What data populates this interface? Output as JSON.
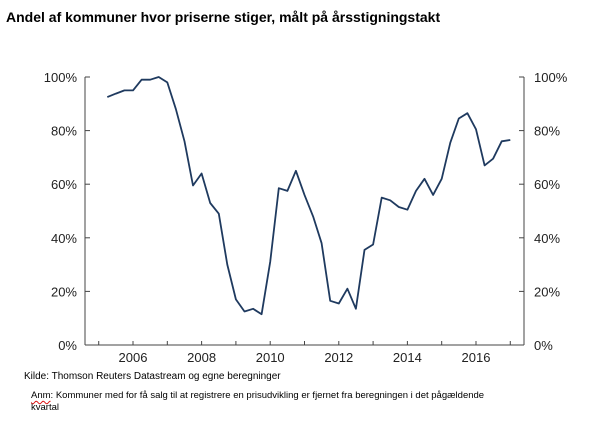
{
  "title": "Andel af kommuner hvor priserne stiger, målt på årsstigningstakt",
  "source": "Kilde: Thomson Reuters Datastream og egne beregninger",
  "note": {
    "prefix": "Anm",
    "text": ": Kommuner med for få salg til at registrere en prisudvikling er fjernet fra beregningen i det pågældende kvartal"
  },
  "chart_data": {
    "type": "line",
    "title": "Andel af kommuner hvor priserne stiger, målt på årsstigningstakt",
    "xlabel": "",
    "ylabel": "",
    "xlim": [
      2004.6,
      2017.4
    ],
    "ylim": [
      0,
      100
    ],
    "x_ticks": [
      2006,
      2008,
      2010,
      2012,
      2014,
      2016
    ],
    "x_tick_labels": [
      "2006",
      "2008",
      "2010",
      "2012",
      "2014",
      "2016"
    ],
    "y_ticks": [
      0,
      20,
      40,
      60,
      80,
      100
    ],
    "y_tick_labels": [
      "0%",
      "20%",
      "40%",
      "60%",
      "80%",
      "100%"
    ],
    "right_axis": true,
    "grid": false,
    "line_color": "#1f3a5f",
    "series": [
      {
        "x": [
          2005.25,
          2005.5,
          2005.75,
          2006.0,
          2006.25,
          2006.5,
          2006.75,
          2007.0,
          2007.25,
          2007.5,
          2007.75,
          2008.0,
          2008.25,
          2008.5,
          2008.75,
          2009.0,
          2009.25,
          2009.5,
          2009.75,
          2010.0,
          2010.25,
          2010.5,
          2010.75,
          2011.0,
          2011.25,
          2011.5,
          2011.75,
          2012.0,
          2012.25,
          2012.5,
          2012.75,
          2013.0,
          2013.25,
          2013.5,
          2013.75,
          2014.0,
          2014.25,
          2014.5,
          2014.75,
          2015.0,
          2015.25,
          2015.5,
          2015.75,
          2016.0,
          2016.25,
          2016.5,
          2016.75,
          2017.0
        ],
        "values": [
          92.5,
          93.8,
          95.0,
          95.0,
          99.0,
          99.0,
          100.0,
          98.0,
          88.0,
          76.0,
          59.5,
          64.0,
          53.0,
          49.0,
          30.0,
          17.0,
          12.5,
          13.5,
          11.5,
          31.0,
          58.5,
          57.5,
          65.0,
          56.0,
          48.0,
          38.0,
          16.5,
          15.5,
          21.0,
          13.5,
          35.5,
          37.5,
          55.0,
          54.0,
          51.5,
          50.5,
          57.5,
          62.0,
          56.0,
          62.0,
          75.5,
          84.5,
          86.5,
          80.5,
          67.0,
          69.5,
          76.0,
          76.5
        ]
      }
    ]
  }
}
